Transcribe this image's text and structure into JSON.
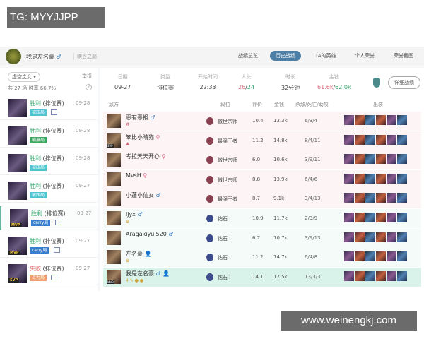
{
  "watermarks": {
    "top": "TG: MYYJJPP",
    "bottom": "www.weinengkj.com"
  },
  "header": {
    "player": "我是左名豪",
    "gender": "♂",
    "server": "峡谷之巅",
    "nav": [
      "战绩总览",
      "历史战绩",
      "TA的英雄",
      "个人荣誉",
      "荣誉截图"
    ],
    "active_nav": 1
  },
  "left": {
    "hero_filter": "虚空之女 ▾",
    "report": "举报",
    "stats": "共 27 场   胜率 66.7%",
    "help": "?",
    "matches": [
      {
        "result": "胜利",
        "type": "(排位赛)",
        "date": "09-28",
        "tag": "被压局",
        "tag_color": "#4fc3d0",
        "badge": "",
        "pic": true,
        "win": true
      },
      {
        "result": "胜利",
        "type": "(排位赛)",
        "date": "09-28",
        "tag": "躺赢局",
        "tag_color": "#3aa860",
        "badge": "",
        "pic": false,
        "win": true
      },
      {
        "result": "胜利",
        "type": "(排位赛)",
        "date": "09-28",
        "tag": "被压局",
        "tag_color": "#4fc3d0",
        "badge": "",
        "pic": false,
        "win": true
      },
      {
        "result": "胜利",
        "type": "(排位赛)",
        "date": "09-27",
        "tag": "被压局",
        "tag_color": "#4fc3d0",
        "badge": "",
        "pic": false,
        "win": true
      },
      {
        "result": "胜利",
        "type": "(排位赛)",
        "date": "09-27",
        "tag": "carry局",
        "tag_color": "#3a7ed0",
        "badge": "MVP",
        "pic": true,
        "win": true
      },
      {
        "result": "胜利",
        "type": "(排位赛)",
        "date": "09-27",
        "tag": "carry局",
        "tag_color": "#3a7ed0",
        "badge": "MVP",
        "pic": true,
        "win": true
      },
      {
        "result": "失败",
        "type": "(排位赛)",
        "date": "09-27",
        "tag": "尽力局",
        "tag_color": "#f0a070",
        "badge": "SVP",
        "pic": true,
        "win": false
      }
    ]
  },
  "summary": [
    {
      "label": "日期",
      "value": "09-27"
    },
    {
      "label": "类型",
      "value": "排位赛"
    },
    {
      "label": "开始时间",
      "value": "22:33"
    },
    {
      "label": "人头",
      "value": "26/24"
    },
    {
      "label": "时长",
      "value": "32分钟"
    },
    {
      "label": "金钱",
      "value": "61.6k/62.0k"
    }
  ],
  "detail_button": "详细战绩",
  "table": {
    "headers": [
      "敌方",
      "段位",
      "评价",
      "金钱",
      "杀敌/死亡/助攻",
      "出装"
    ],
    "rows": [
      {
        "name": "恶有恶报",
        "gender": "♂",
        "sub": "♻",
        "badge": "",
        "rank": "傲世宗师",
        "score": "10.4",
        "gold": "13.3k",
        "kda": "6/3/4",
        "side": "enemy"
      },
      {
        "name": "笨比小晴猫",
        "gender": "♀",
        "sub": "♣",
        "badge": "SVP",
        "rank": "最强王者",
        "score": "11.2",
        "gold": "14.8k",
        "kda": "8/4/11",
        "side": "enemy"
      },
      {
        "name": "考拉天天开心",
        "gender": "♀",
        "sub": "",
        "badge": "",
        "rank": "傲世宗师",
        "score": "6.0",
        "gold": "10.6k",
        "kda": "3/9/11",
        "side": "enemy"
      },
      {
        "name": "MvsH",
        "gender": "♀",
        "sub": "",
        "badge": "",
        "rank": "傲世宗师",
        "score": "8.8",
        "gold": "13.9k",
        "kda": "6/4/6",
        "side": "enemy"
      },
      {
        "name": "小蓬小仙女",
        "gender": "♂",
        "sub": "",
        "badge": "",
        "rank": "最强王者",
        "score": "8.7",
        "gold": "9.1k",
        "kda": "3/4/13",
        "side": "enemy"
      },
      {
        "name": "ljyx",
        "gender": "♂",
        "sub": "♛",
        "badge": "",
        "rank": "钻石 I",
        "score": "10.9",
        "gold": "11.7k",
        "kda": "2/3/9",
        "side": "ally"
      },
      {
        "name": "Aragakiyui520",
        "gender": "♂",
        "sub": "",
        "badge": "",
        "rank": "钻石 I",
        "score": "6.7",
        "gold": "10.7k",
        "kda": "3/9/13",
        "side": "ally"
      },
      {
        "name": "左名豪",
        "gender": "👤",
        "sub": "♛",
        "badge": "",
        "rank": "钻石 I",
        "score": "11.2",
        "gold": "14.7k",
        "kda": "6/4/8",
        "side": "ally"
      },
      {
        "name": "我是左名豪",
        "gender": "♂ 👤",
        "sub": "4 ✎ ● ●",
        "badge": "MVP",
        "rank": "钻石 I",
        "score": "14.1",
        "gold": "17.5k",
        "kda": "13/3/3",
        "side": "me"
      }
    ]
  },
  "colors": {
    "accent": "#4d7fa6",
    "win": "#3aa870",
    "lose": "#e06060",
    "me_row": "#d9f3ea"
  }
}
